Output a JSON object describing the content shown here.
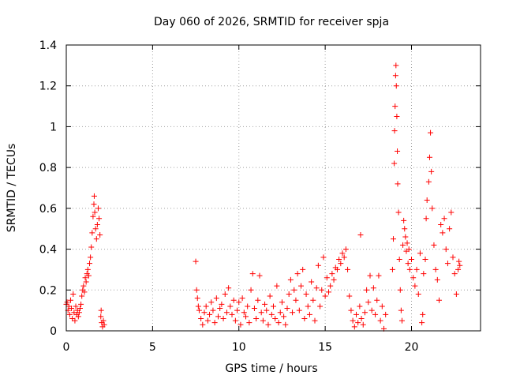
{
  "chart_data": {
    "type": "scatter",
    "title": "Day 060 of 2026, SRMTID for receiver spja",
    "xlabel": "GPS time / hours",
    "ylabel": "SRMTID / TECUs",
    "xlim": [
      0,
      24
    ],
    "ylim": [
      0,
      1.4
    ],
    "x_ticks": [
      0,
      5,
      10,
      15,
      20
    ],
    "x_tick_labels": [
      "0",
      "5",
      "10",
      "15",
      "20"
    ],
    "y_ticks": [
      0,
      0.2,
      0.4,
      0.6,
      0.8,
      1.0,
      1.2,
      1.4
    ],
    "y_tick_labels": [
      "0",
      "0.2",
      "0.4",
      "0.6",
      "0.8",
      "1",
      "1.2",
      "1.4"
    ],
    "grid": true,
    "marker": "+",
    "marker_color": "#ff0000",
    "series": [
      {
        "name": "SRMTID",
        "points": [
          [
            0.0,
            0.13
          ],
          [
            0.05,
            0.14
          ],
          [
            0.1,
            0.1
          ],
          [
            0.15,
            0.12
          ],
          [
            0.2,
            0.08
          ],
          [
            0.25,
            0.15
          ],
          [
            0.3,
            0.11
          ],
          [
            0.35,
            0.06
          ],
          [
            0.4,
            0.18
          ],
          [
            0.45,
            0.09
          ],
          [
            0.5,
            0.05
          ],
          [
            0.55,
            0.12
          ],
          [
            0.6,
            0.08
          ],
          [
            0.65,
            0.1
          ],
          [
            0.7,
            0.07
          ],
          [
            0.75,
            0.09
          ],
          [
            0.8,
            0.11
          ],
          [
            0.85,
            0.13
          ],
          [
            0.9,
            0.17
          ],
          [
            0.95,
            0.2
          ],
          [
            1.0,
            0.22
          ],
          [
            1.05,
            0.19
          ],
          [
            1.1,
            0.26
          ],
          [
            1.15,
            0.24
          ],
          [
            1.2,
            0.28
          ],
          [
            1.25,
            0.3
          ],
          [
            1.3,
            0.27
          ],
          [
            1.35,
            0.33
          ],
          [
            1.4,
            0.36
          ],
          [
            1.45,
            0.41
          ],
          [
            1.5,
            0.48
          ],
          [
            1.55,
            0.56
          ],
          [
            1.6,
            0.62
          ],
          [
            1.62,
            0.66
          ],
          [
            1.65,
            0.58
          ],
          [
            1.7,
            0.5
          ],
          [
            1.75,
            0.45
          ],
          [
            1.8,
            0.52
          ],
          [
            1.85,
            0.6
          ],
          [
            1.9,
            0.55
          ],
          [
            1.95,
            0.47
          ],
          [
            2.0,
            0.07
          ],
          [
            2.02,
            0.1
          ],
          [
            2.05,
            0.04
          ],
          [
            2.1,
            0.02
          ],
          [
            2.15,
            0.05
          ],
          [
            2.2,
            0.03
          ],
          [
            7.5,
            0.34
          ],
          [
            7.55,
            0.2
          ],
          [
            7.6,
            0.16
          ],
          [
            7.65,
            0.12
          ],
          [
            7.7,
            0.1
          ],
          [
            7.8,
            0.06
          ],
          [
            7.9,
            0.03
          ],
          [
            8.0,
            0.09
          ],
          [
            8.1,
            0.12
          ],
          [
            8.2,
            0.05
          ],
          [
            8.3,
            0.08
          ],
          [
            8.4,
            0.14
          ],
          [
            8.5,
            0.1
          ],
          [
            8.6,
            0.04
          ],
          [
            8.7,
            0.16
          ],
          [
            8.8,
            0.07
          ],
          [
            8.9,
            0.11
          ],
          [
            9.0,
            0.13
          ],
          [
            9.1,
            0.06
          ],
          [
            9.2,
            0.18
          ],
          [
            9.3,
            0.09
          ],
          [
            9.4,
            0.21
          ],
          [
            9.5,
            0.12
          ],
          [
            9.6,
            0.08
          ],
          [
            9.7,
            0.15
          ],
          [
            9.8,
            0.05
          ],
          [
            9.9,
            0.1
          ],
          [
            10.0,
            0.14
          ],
          [
            10.1,
            0.03
          ],
          [
            10.2,
            0.16
          ],
          [
            10.3,
            0.09
          ],
          [
            10.4,
            0.07
          ],
          [
            10.5,
            0.12
          ],
          [
            10.6,
            0.04
          ],
          [
            10.7,
            0.2
          ],
          [
            10.8,
            0.28
          ],
          [
            10.9,
            0.11
          ],
          [
            11.0,
            0.06
          ],
          [
            11.1,
            0.15
          ],
          [
            11.2,
            0.27
          ],
          [
            11.3,
            0.09
          ],
          [
            11.4,
            0.05
          ],
          [
            11.5,
            0.13
          ],
          [
            11.6,
            0.1
          ],
          [
            11.7,
            0.03
          ],
          [
            11.8,
            0.17
          ],
          [
            11.9,
            0.08
          ],
          [
            12.0,
            0.12
          ],
          [
            12.1,
            0.06
          ],
          [
            12.2,
            0.22
          ],
          [
            12.3,
            0.04
          ],
          [
            12.4,
            0.09
          ],
          [
            12.5,
            0.14
          ],
          [
            12.6,
            0.07
          ],
          [
            12.7,
            0.03
          ],
          [
            12.8,
            0.11
          ],
          [
            12.9,
            0.18
          ],
          [
            13.0,
            0.25
          ],
          [
            13.1,
            0.09
          ],
          [
            13.2,
            0.2
          ],
          [
            13.3,
            0.15
          ],
          [
            13.4,
            0.28
          ],
          [
            13.5,
            0.1
          ],
          [
            13.6,
            0.22
          ],
          [
            13.7,
            0.3
          ],
          [
            13.8,
            0.06
          ],
          [
            13.9,
            0.18
          ],
          [
            14.0,
            0.12
          ],
          [
            14.1,
            0.08
          ],
          [
            14.2,
            0.24
          ],
          [
            14.3,
            0.15
          ],
          [
            14.4,
            0.05
          ],
          [
            14.5,
            0.21
          ],
          [
            14.6,
            0.32
          ],
          [
            14.7,
            0.12
          ],
          [
            14.8,
            0.2
          ],
          [
            14.9,
            0.36
          ],
          [
            15.0,
            0.17
          ],
          [
            15.1,
            0.26
          ],
          [
            15.2,
            0.19
          ],
          [
            15.3,
            0.22
          ],
          [
            15.4,
            0.28
          ],
          [
            15.5,
            0.25
          ],
          [
            15.6,
            0.31
          ],
          [
            15.7,
            0.3
          ],
          [
            15.8,
            0.35
          ],
          [
            15.9,
            0.33
          ],
          [
            16.0,
            0.38
          ],
          [
            16.1,
            0.36
          ],
          [
            16.2,
            0.4
          ],
          [
            16.3,
            0.3
          ],
          [
            16.4,
            0.17
          ],
          [
            16.5,
            0.1
          ],
          [
            16.6,
            0.05
          ],
          [
            16.7,
            0.02
          ],
          [
            16.8,
            0.08
          ],
          [
            16.9,
            0.04
          ],
          [
            17.0,
            0.12
          ],
          [
            17.05,
            0.47
          ],
          [
            17.1,
            0.06
          ],
          [
            17.2,
            0.03
          ],
          [
            17.3,
            0.09
          ],
          [
            17.4,
            0.2
          ],
          [
            17.5,
            0.14
          ],
          [
            17.6,
            0.27
          ],
          [
            17.7,
            0.1
          ],
          [
            17.8,
            0.21
          ],
          [
            17.9,
            0.08
          ],
          [
            18.0,
            0.15
          ],
          [
            18.1,
            0.27
          ],
          [
            18.2,
            0.05
          ],
          [
            18.3,
            0.12
          ],
          [
            18.4,
            0.01
          ],
          [
            18.5,
            0.08
          ],
          [
            18.9,
            0.3
          ],
          [
            18.95,
            0.45
          ],
          [
            19.0,
            0.82
          ],
          [
            19.02,
            0.98
          ],
          [
            19.05,
            1.1
          ],
          [
            19.08,
            1.25
          ],
          [
            19.1,
            1.3
          ],
          [
            19.12,
            1.2
          ],
          [
            19.15,
            1.05
          ],
          [
            19.18,
            0.88
          ],
          [
            19.2,
            0.72
          ],
          [
            19.25,
            0.58
          ],
          [
            19.3,
            0.35
          ],
          [
            19.35,
            0.2
          ],
          [
            19.4,
            0.1
          ],
          [
            19.45,
            0.05
          ],
          [
            19.5,
            0.42
          ],
          [
            19.55,
            0.54
          ],
          [
            19.6,
            0.5
          ],
          [
            19.65,
            0.46
          ],
          [
            19.7,
            0.39
          ],
          [
            19.75,
            0.43
          ],
          [
            19.8,
            0.33
          ],
          [
            19.85,
            0.4
          ],
          [
            19.9,
            0.3
          ],
          [
            20.0,
            0.35
          ],
          [
            20.1,
            0.26
          ],
          [
            20.2,
            0.22
          ],
          [
            20.3,
            0.3
          ],
          [
            20.4,
            0.18
          ],
          [
            20.5,
            0.38
          ],
          [
            20.6,
            0.04
          ],
          [
            20.65,
            0.08
          ],
          [
            20.7,
            0.28
          ],
          [
            20.8,
            0.35
          ],
          [
            20.85,
            0.55
          ],
          [
            20.9,
            0.64
          ],
          [
            21.0,
            0.73
          ],
          [
            21.05,
            0.85
          ],
          [
            21.1,
            0.97
          ],
          [
            21.15,
            0.78
          ],
          [
            21.2,
            0.6
          ],
          [
            21.3,
            0.42
          ],
          [
            21.4,
            0.3
          ],
          [
            21.5,
            0.25
          ],
          [
            21.6,
            0.15
          ],
          [
            21.7,
            0.52
          ],
          [
            21.8,
            0.48
          ],
          [
            21.9,
            0.55
          ],
          [
            22.0,
            0.4
          ],
          [
            22.1,
            0.33
          ],
          [
            22.2,
            0.5
          ],
          [
            22.3,
            0.58
          ],
          [
            22.4,
            0.36
          ],
          [
            22.5,
            0.28
          ],
          [
            22.6,
            0.18
          ],
          [
            22.7,
            0.3
          ],
          [
            22.75,
            0.34
          ],
          [
            22.8,
            0.32
          ]
        ]
      }
    ]
  }
}
